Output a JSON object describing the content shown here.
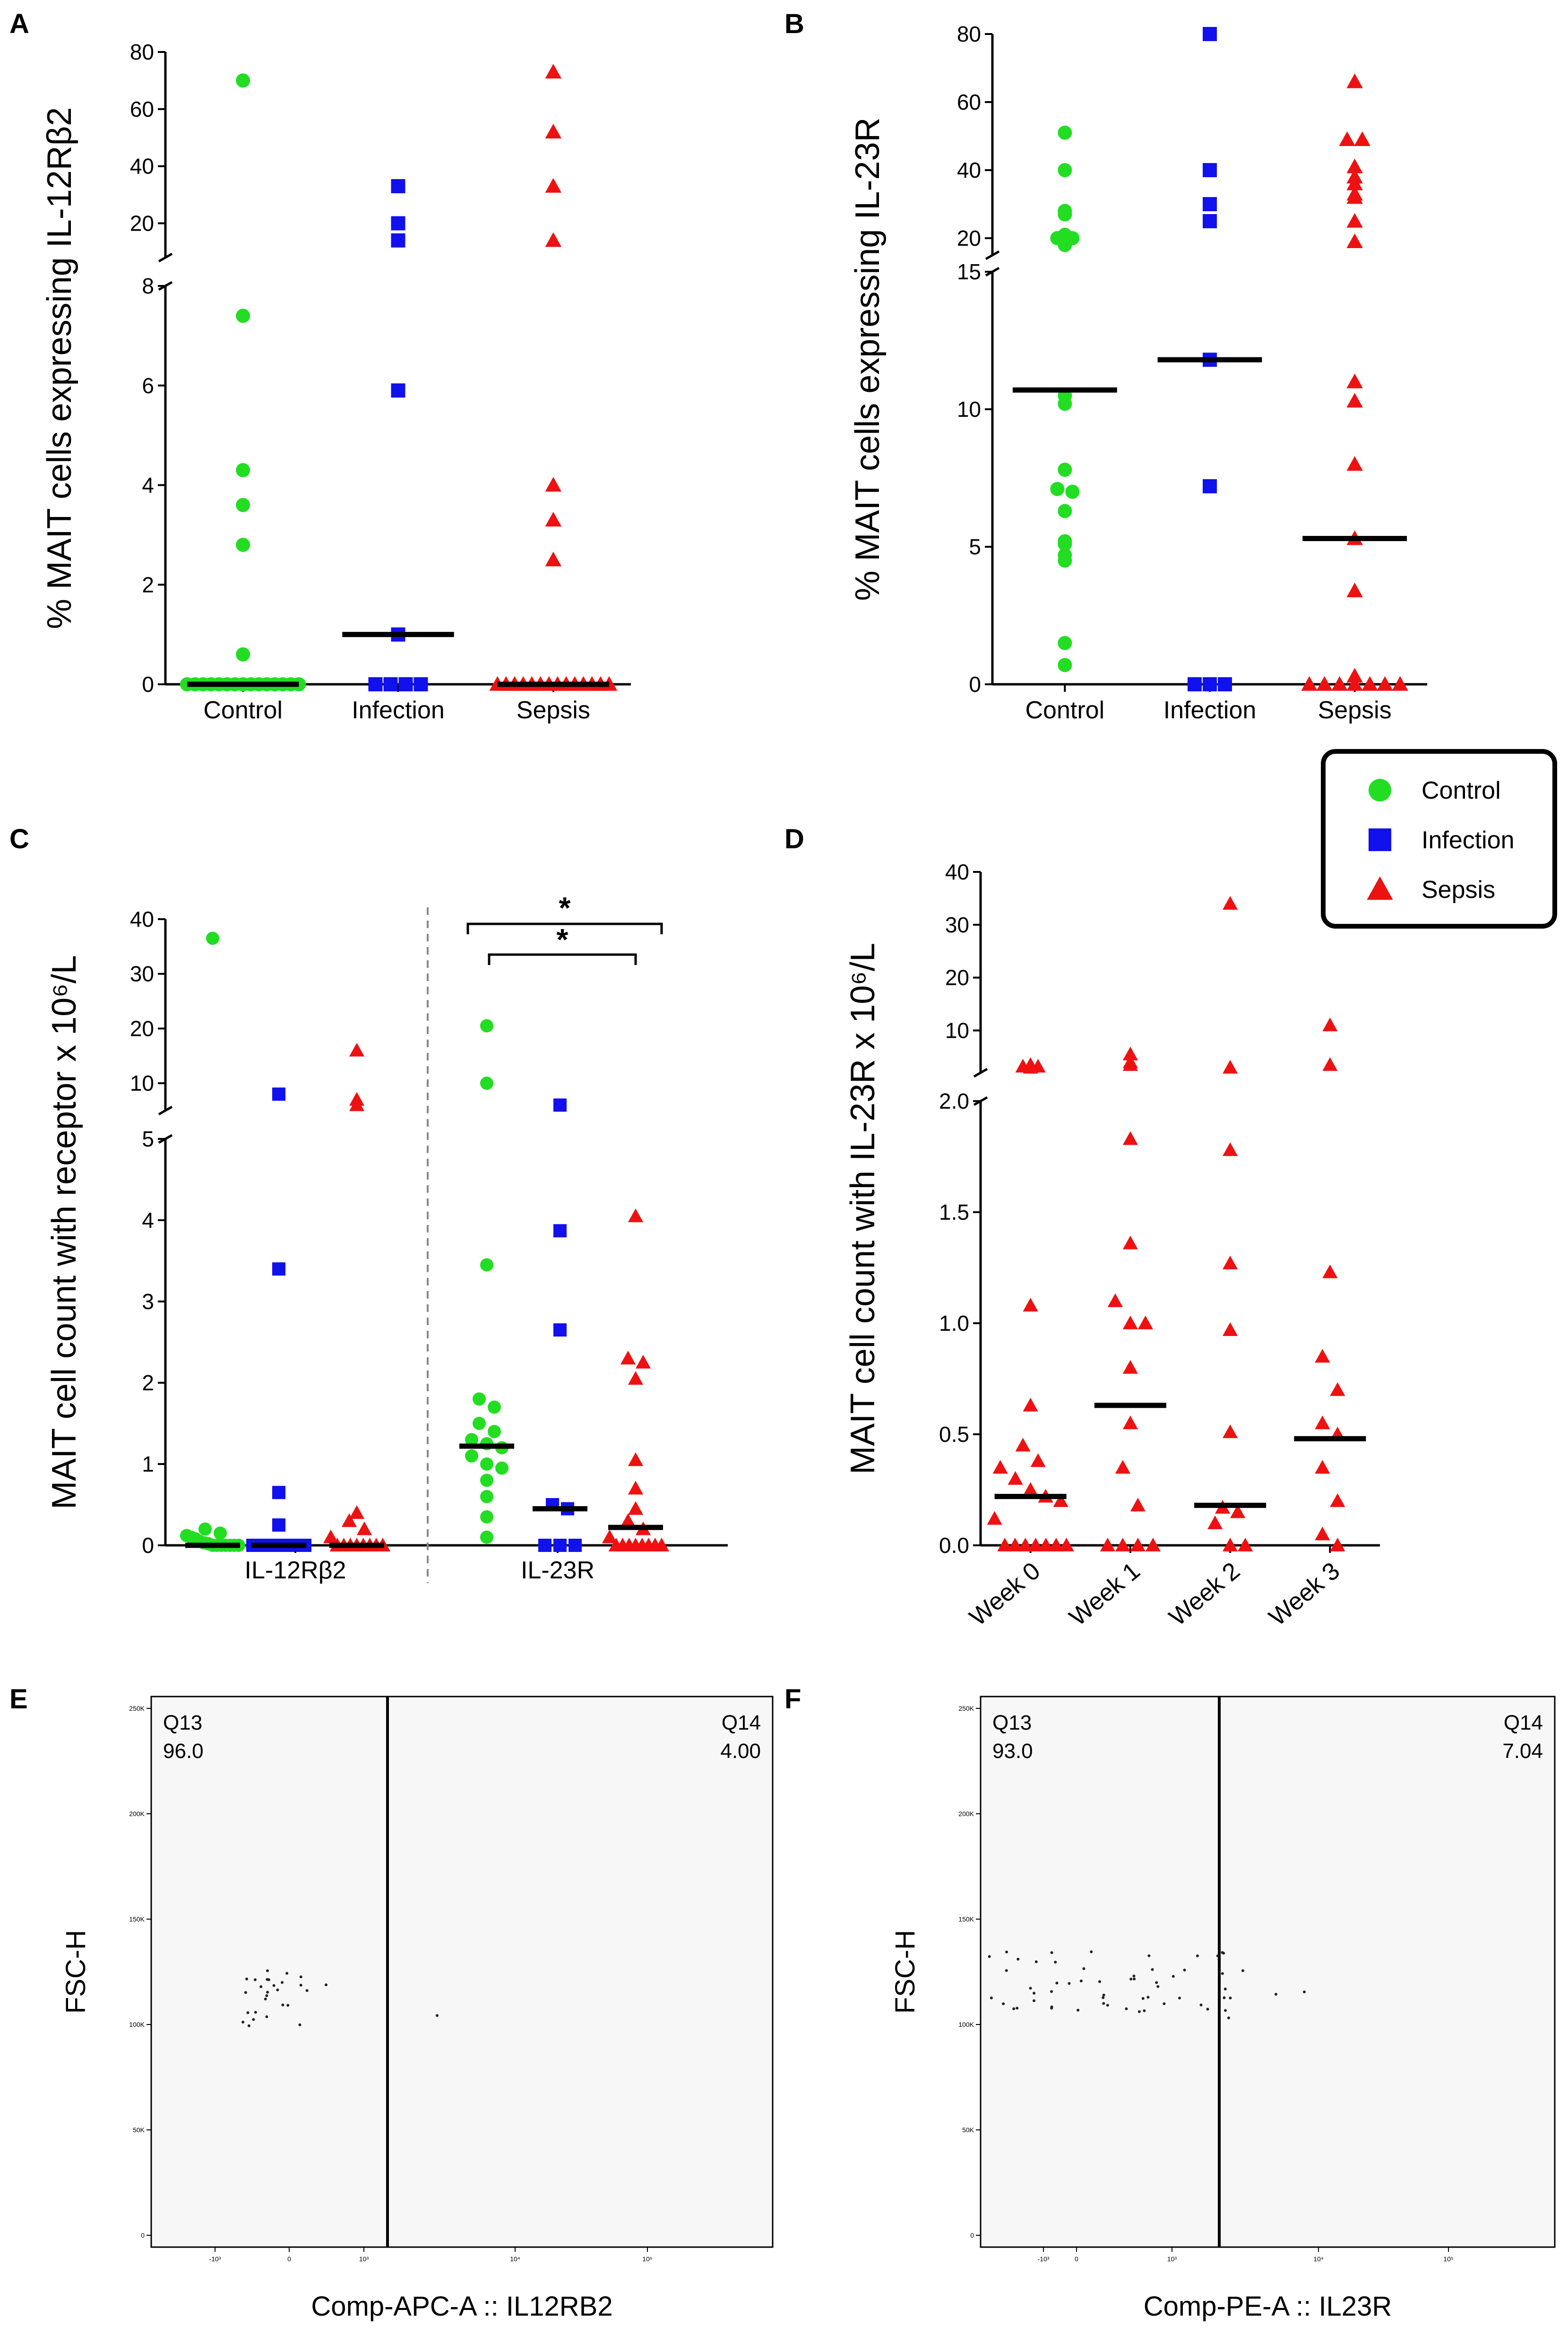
{
  "legend": {
    "items": [
      {
        "label": "Control",
        "color": "#22dd22",
        "marker": "circle"
      },
      {
        "label": "Infection",
        "color": "#1111ee",
        "marker": "square"
      },
      {
        "label": "Sepsis",
        "color": "#ee1111",
        "marker": "triangle"
      }
    ]
  },
  "chart_data": [
    {
      "panel": "A",
      "type": "scatter",
      "ylabel": "% MAIT cells expressing IL-12Rβ2",
      "categories": [
        "Control",
        "Infection",
        "Sepsis"
      ],
      "broken_axis": {
        "lower": [
          0,
          8
        ],
        "upper": [
          8,
          80
        ]
      },
      "lower_ticks": [
        "0",
        "2",
        "4",
        "6",
        "8"
      ],
      "upper_ticks": [
        "20",
        "40",
        "60",
        "80"
      ],
      "series": [
        {
          "name": "Control",
          "values": [
            70,
            7.4,
            4.3,
            3.6,
            2.8,
            0.6,
            0,
            0,
            0,
            0,
            0,
            0,
            0,
            0,
            0,
            0,
            0,
            0,
            0,
            0,
            0
          ],
          "median": 0
        },
        {
          "name": "Infection",
          "values": [
            33,
            20,
            14,
            5.9,
            1.0,
            0,
            0,
            0,
            0
          ],
          "median": 1.0
        },
        {
          "name": "Sepsis",
          "values": [
            73,
            52,
            33,
            14,
            4.0,
            3.3,
            2.5,
            0,
            0,
            0,
            0,
            0,
            0,
            0,
            0,
            0,
            0,
            0,
            0,
            0,
            0
          ],
          "median": 0
        }
      ]
    },
    {
      "panel": "B",
      "type": "scatter",
      "ylabel": "% MAIT cells expressing IL-23R",
      "categories": [
        "Control",
        "Infection",
        "Sepsis"
      ],
      "broken_axis": {
        "lower": [
          0,
          15
        ],
        "upper": [
          15,
          80
        ]
      },
      "lower_ticks": [
        "0",
        "5",
        "10",
        "15"
      ],
      "upper_ticks": [
        "20",
        "40",
        "60",
        "80"
      ],
      "series": [
        {
          "name": "Control",
          "values": [
            51,
            40,
            28,
            27,
            21,
            20,
            20,
            18,
            10.5,
            10.2,
            7.8,
            7.1,
            7.0,
            6.3,
            5.2,
            5.1,
            4.7,
            4.5,
            1.5,
            0.7
          ],
          "median": 10.7
        },
        {
          "name": "Infection",
          "values": [
            80,
            40,
            30,
            25,
            11.8,
            7.2,
            0,
            0,
            0
          ],
          "median": 11.8
        },
        {
          "name": "Sepsis",
          "values": [
            66,
            49,
            49,
            41,
            38,
            36,
            33,
            32,
            25,
            19,
            11.0,
            10.3,
            8.0,
            5.3,
            3.4,
            0.3,
            0,
            0,
            0,
            0,
            0,
            0,
            0
          ],
          "median": 5.3
        }
      ]
    },
    {
      "panel": "C",
      "type": "scatter",
      "ylabel": "MAIT cell count with receptor x 10⁶/L",
      "groups": [
        "IL-12Rβ2",
        "IL-23R"
      ],
      "broken_axis": {
        "lower": [
          0,
          5
        ],
        "upper": [
          5,
          40
        ]
      },
      "lower_ticks": [
        "0",
        "1",
        "2",
        "3",
        "4",
        "5"
      ],
      "upper_ticks": [
        "10",
        "20",
        "30",
        "40"
      ],
      "significance": [
        "*",
        "*"
      ],
      "series": [
        {
          "name": "Control",
          "group": "IL-12Rβ2",
          "values": [
            36.5,
            0.2,
            0.15,
            0.12,
            0.1,
            0.08,
            0.05,
            0.03,
            0.02,
            0,
            0,
            0,
            0,
            0,
            0,
            0
          ],
          "median": 0
        },
        {
          "name": "Infection",
          "group": "IL-12Rβ2",
          "values": [
            8,
            3.4,
            0.65,
            0.25,
            0,
            0,
            0,
            0,
            0
          ],
          "median": 0
        },
        {
          "name": "Sepsis",
          "group": "IL-12Rβ2",
          "values": [
            16,
            7,
            6,
            0.4,
            0.3,
            0.2,
            0.1,
            0,
            0,
            0,
            0,
            0,
            0,
            0,
            0
          ],
          "median": 0
        },
        {
          "name": "Control",
          "group": "IL-23R",
          "values": [
            20.5,
            10,
            3.45,
            1.8,
            1.7,
            1.5,
            1.4,
            1.3,
            1.25,
            1.2,
            1.1,
            1.0,
            0.95,
            0.8,
            0.6,
            0.35,
            0.1
          ],
          "median": 1.22
        },
        {
          "name": "Infection",
          "group": "IL-23R",
          "values": [
            6,
            3.87,
            2.65,
            0.5,
            0.45,
            0,
            0,
            0
          ],
          "median": 0.45
        },
        {
          "name": "Sepsis",
          "group": "IL-23R",
          "values": [
            4.05,
            2.3,
            2.25,
            2.05,
            1.05,
            0.7,
            0.45,
            0.3,
            0.2,
            0.1,
            0,
            0,
            0,
            0,
            0,
            0,
            0,
            0
          ],
          "median": 0.22
        }
      ]
    },
    {
      "panel": "D",
      "type": "scatter",
      "ylabel": "MAIT cell count with IL-23R x 10⁶/L",
      "categories": [
        "Week 0",
        "Week 1",
        "Week 2",
        "Week 3"
      ],
      "broken_axis": {
        "lower": [
          0,
          2.0
        ],
        "upper": [
          2.0,
          40
        ]
      },
      "lower_ticks": [
        "0.0",
        "0.5",
        "1.0",
        "1.5",
        "2.0"
      ],
      "upper_ticks": [
        "10",
        "20",
        "30",
        "40"
      ],
      "series": [
        {
          "name": "Week 0",
          "values": [
            3.5,
            3.2,
            3.2,
            3.0,
            1.08,
            0.63,
            0.45,
            0.38,
            0.35,
            0.3,
            0.25,
            0.22,
            0.2,
            0.12,
            0,
            0,
            0,
            0,
            0,
            0,
            0
          ],
          "median": 0.22
        },
        {
          "name": "Week 1",
          "values": [
            5.5,
            4.0,
            3.5,
            1.83,
            1.36,
            1.1,
            1.0,
            1.0,
            0.8,
            0.55,
            0.35,
            0.18,
            0,
            0,
            0,
            0
          ],
          "median": 0.63
        },
        {
          "name": "Week 2",
          "values": [
            34,
            3.0,
            1.78,
            1.27,
            0.97,
            0.51,
            0.17,
            0.15,
            0.1,
            0,
            0
          ],
          "median": 0.18
        },
        {
          "name": "Week 3",
          "values": [
            11,
            3.5,
            1.23,
            0.85,
            0.7,
            0.55,
            0.5,
            0.35,
            0.2,
            0.05,
            0
          ],
          "median": 0.48
        }
      ]
    }
  ],
  "flow": [
    {
      "panel": "E",
      "xlabel": "Comp-APC-A :: IL12RB2",
      "ylabel": "FSC-H",
      "gates": [
        {
          "name": "Q13",
          "value": "96.0"
        },
        {
          "name": "Q14",
          "value": "4.00"
        }
      ],
      "y_ticks": [
        "250K",
        "200K",
        "150K",
        "100K",
        "50K",
        "0"
      ],
      "x_ticks": [
        "-10³",
        "0",
        "10³",
        "10⁴",
        "10⁵"
      ]
    },
    {
      "panel": "F",
      "xlabel": "Comp-PE-A :: IL23R",
      "ylabel": "FSC-H",
      "gates": [
        {
          "name": "Q13",
          "value": "93.0"
        },
        {
          "name": "Q14",
          "value": "7.04"
        }
      ],
      "y_ticks": [
        "250K",
        "200K",
        "150K",
        "100K",
        "50K",
        "0"
      ],
      "x_ticks": [
        "-10³",
        "0",
        "10³",
        "10⁴",
        "10⁵"
      ]
    }
  ]
}
